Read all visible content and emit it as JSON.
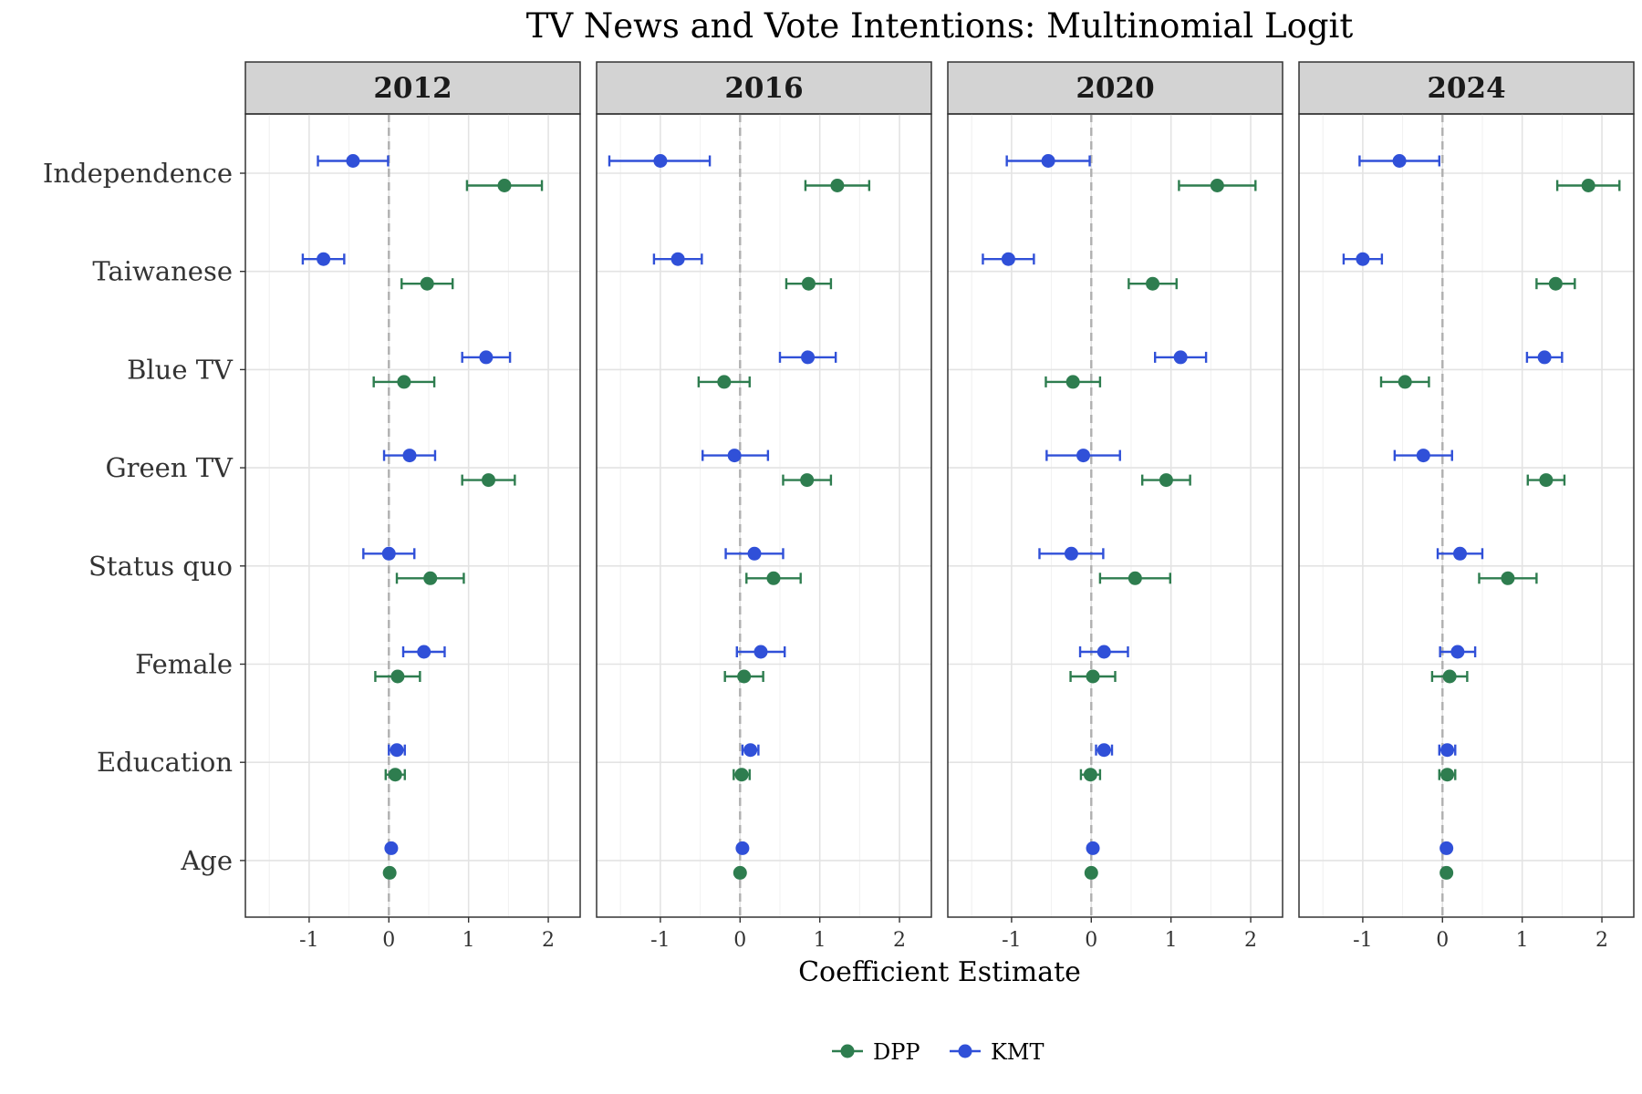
{
  "chart_data": {
    "type": "dot-whisker",
    "title": "TV News and Vote Intentions: Multinomial Logit",
    "xlabel": "Coefficient Estimate",
    "ylabel": "",
    "xlim": [
      -1.8,
      2.4
    ],
    "x_ticks": [
      -1,
      0,
      1,
      2
    ],
    "x_tick_labels": [
      "-1",
      "0",
      "1",
      "2"
    ],
    "reference_line": 0,
    "grid": true,
    "legend_position": "bottom",
    "terms": [
      "Independence",
      "Taiwanese",
      "Blue TV",
      "Green TV",
      "Status quo",
      "Female",
      "Education",
      "Age"
    ],
    "series_styles": [
      {
        "name": "DPP",
        "color": "#2e7d4f"
      },
      {
        "name": "KMT",
        "color": "#3050d8"
      }
    ],
    "legend": [
      {
        "name": "DPP",
        "color": "#2e7d4f"
      },
      {
        "name": "KMT",
        "color": "#3050d8"
      }
    ],
    "panels": [
      {
        "label": "2012",
        "series": [
          {
            "name": "KMT",
            "estimate": [
              -0.45,
              -0.82,
              1.22,
              0.26,
              0.0,
              0.44,
              0.1,
              0.03
            ],
            "lower": [
              -0.89,
              -1.08,
              0.92,
              -0.06,
              -0.32,
              0.18,
              0.0,
              0.0
            ],
            "upper": [
              -0.01,
              -0.56,
              1.52,
              0.58,
              0.32,
              0.7,
              0.2,
              0.06
            ]
          },
          {
            "name": "DPP",
            "estimate": [
              1.45,
              0.48,
              0.19,
              1.25,
              0.52,
              0.11,
              0.08,
              0.01
            ],
            "lower": [
              0.98,
              0.16,
              -0.19,
              0.92,
              0.1,
              -0.17,
              -0.04,
              -0.01
            ],
            "upper": [
              1.92,
              0.8,
              0.57,
              1.58,
              0.94,
              0.39,
              0.2,
              0.03
            ]
          }
        ]
      },
      {
        "label": "2016",
        "series": [
          {
            "name": "KMT",
            "estimate": [
              -1.0,
              -0.78,
              0.85,
              -0.07,
              0.18,
              0.26,
              0.13,
              0.03
            ],
            "lower": [
              -1.64,
              -1.08,
              0.5,
              -0.47,
              -0.18,
              -0.04,
              0.03,
              0.0
            ],
            "upper": [
              -0.38,
              -0.48,
              1.2,
              0.35,
              0.54,
              0.56,
              0.23,
              0.06
            ]
          },
          {
            "name": "DPP",
            "estimate": [
              1.22,
              0.86,
              -0.2,
              0.84,
              0.42,
              0.05,
              0.02,
              0.0
            ],
            "lower": [
              0.82,
              0.58,
              -0.52,
              0.54,
              0.08,
              -0.19,
              -0.08,
              -0.02
            ],
            "upper": [
              1.62,
              1.14,
              0.12,
              1.14,
              0.76,
              0.29,
              0.12,
              0.02
            ]
          }
        ]
      },
      {
        "label": "2020",
        "series": [
          {
            "name": "KMT",
            "estimate": [
              -0.54,
              -1.04,
              1.12,
              -0.1,
              -0.25,
              0.16,
              0.16,
              0.02
            ],
            "lower": [
              -1.06,
              -1.36,
              0.8,
              -0.56,
              -0.65,
              -0.14,
              0.06,
              0.0
            ],
            "upper": [
              -0.02,
              -0.72,
              1.44,
              0.36,
              0.15,
              0.46,
              0.26,
              0.04
            ]
          },
          {
            "name": "DPP",
            "estimate": [
              1.58,
              0.77,
              -0.23,
              0.94,
              0.55,
              0.02,
              -0.01,
              0.0
            ],
            "lower": [
              1.1,
              0.47,
              -0.57,
              0.64,
              0.11,
              -0.26,
              -0.13,
              -0.02
            ],
            "upper": [
              2.06,
              1.07,
              0.11,
              1.24,
              0.99,
              0.3,
              0.11,
              0.02
            ]
          }
        ]
      },
      {
        "label": "2024",
        "series": [
          {
            "name": "KMT",
            "estimate": [
              -0.54,
              -1.0,
              1.28,
              -0.24,
              0.22,
              0.19,
              0.06,
              0.05
            ],
            "lower": [
              -1.04,
              -1.24,
              1.06,
              -0.6,
              -0.06,
              -0.03,
              -0.04,
              0.03
            ],
            "upper": [
              -0.04,
              -0.76,
              1.5,
              0.12,
              0.5,
              0.41,
              0.16,
              0.07
            ]
          },
          {
            "name": "DPP",
            "estimate": [
              1.83,
              1.42,
              -0.47,
              1.3,
              0.82,
              0.09,
              0.06,
              0.05
            ],
            "lower": [
              1.44,
              1.18,
              -0.77,
              1.07,
              0.46,
              -0.13,
              -0.04,
              0.03
            ],
            "upper": [
              2.22,
              1.66,
              -0.17,
              1.53,
              1.18,
              0.31,
              0.16,
              0.07
            ]
          }
        ]
      }
    ]
  }
}
